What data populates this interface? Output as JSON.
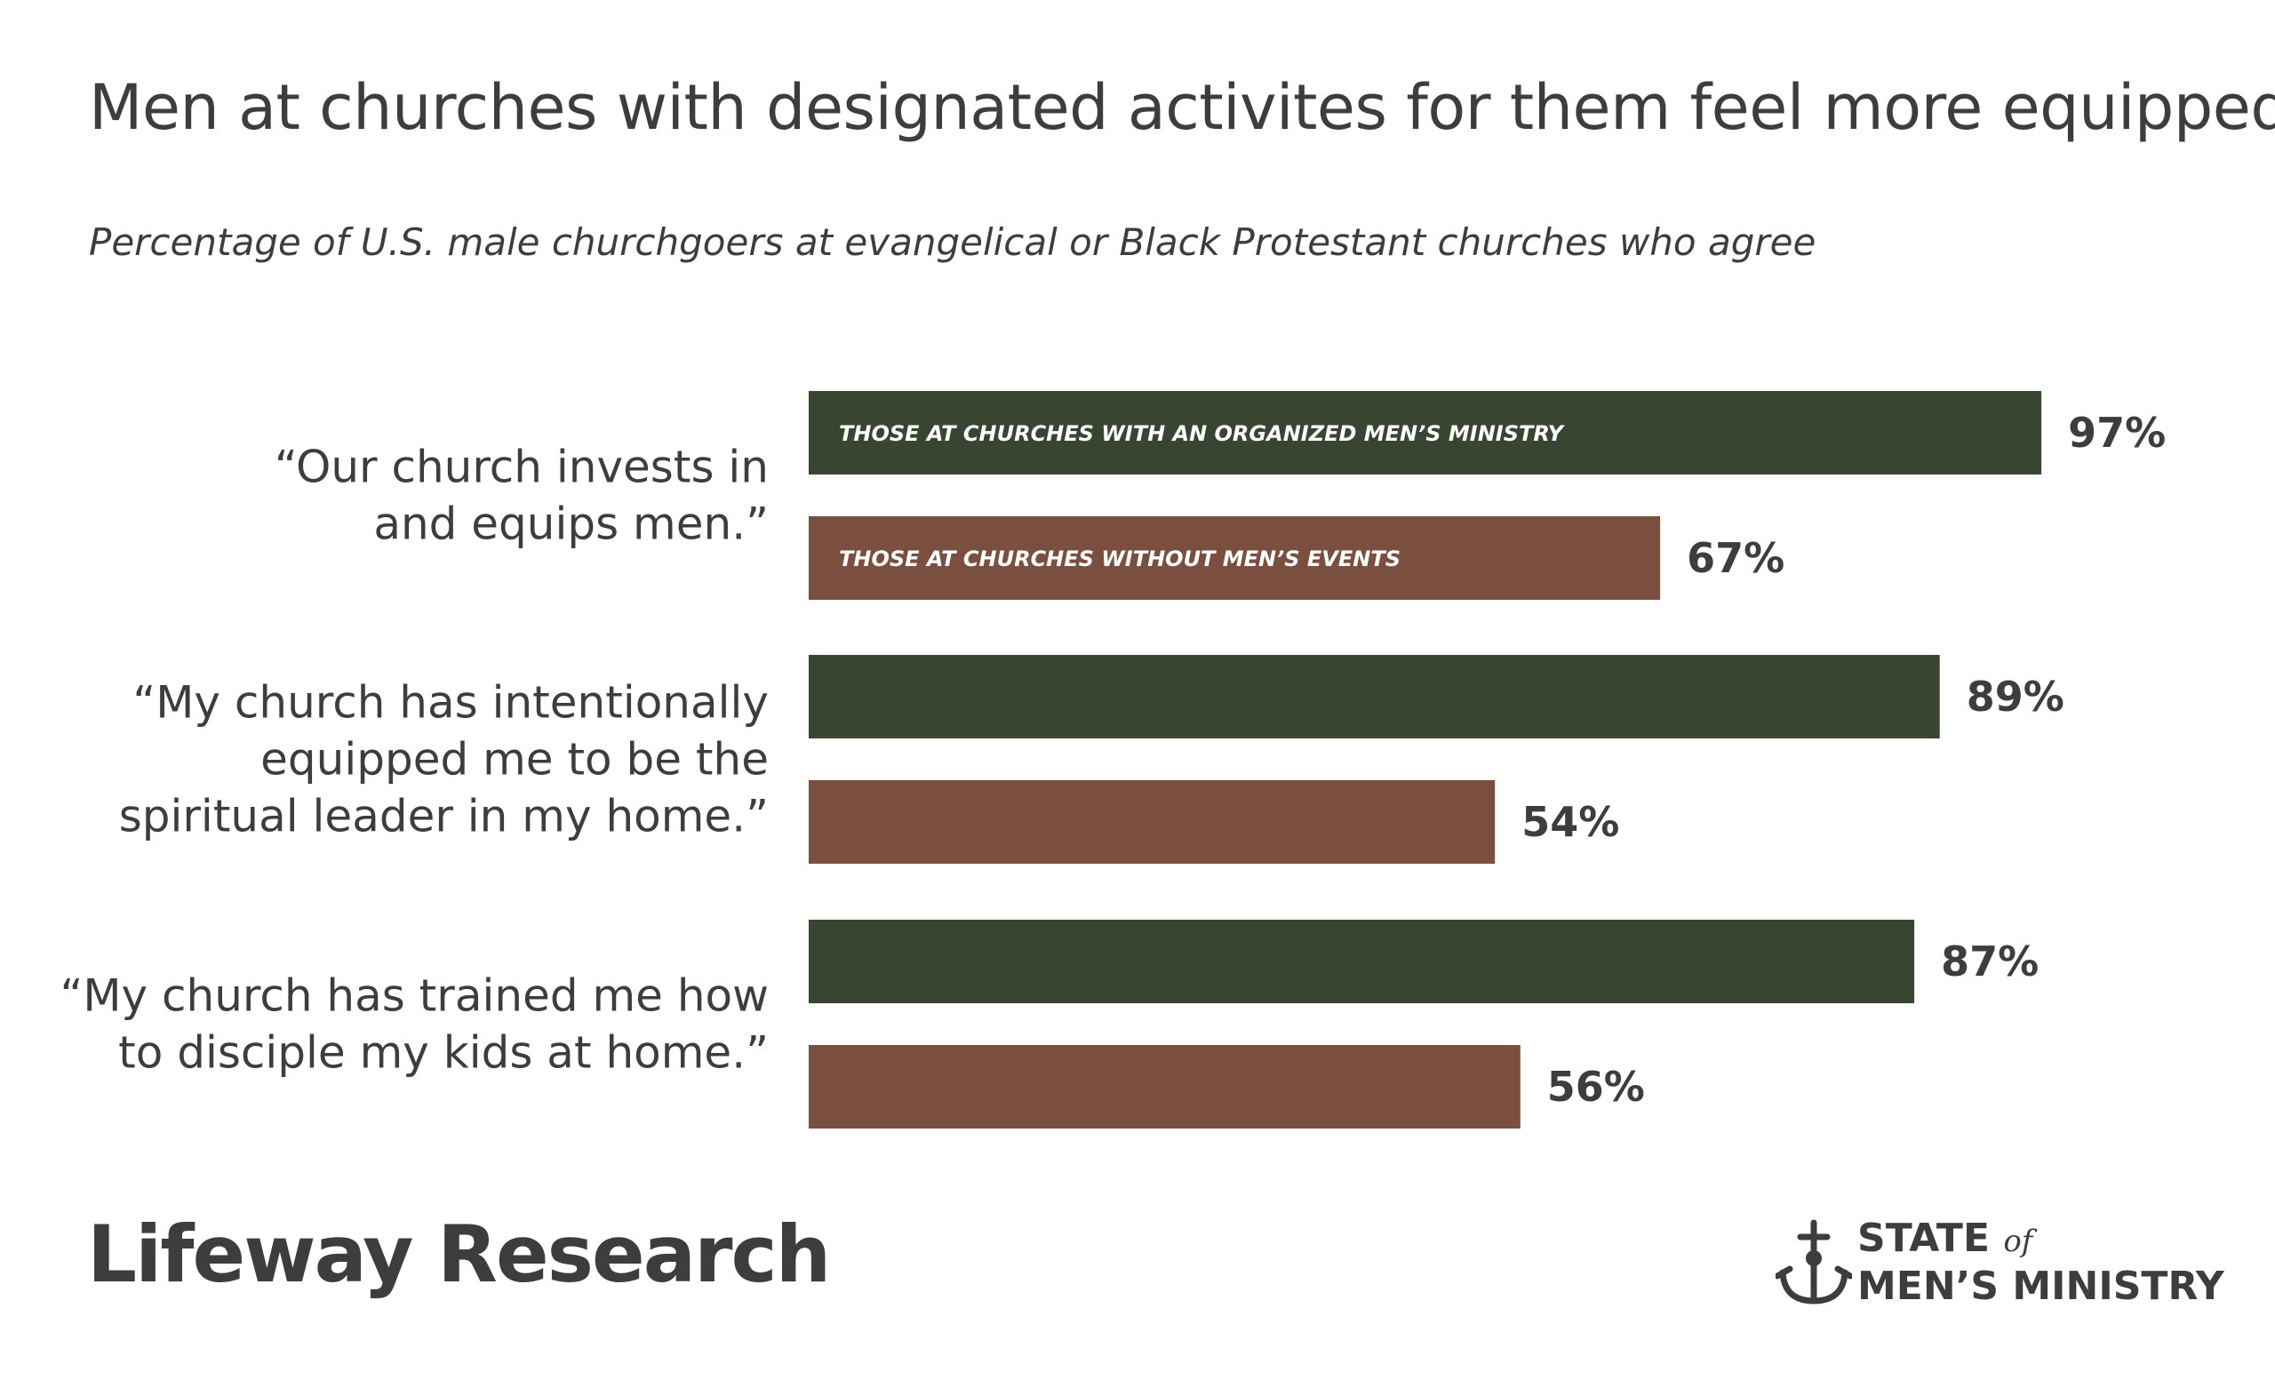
{
  "title": "Men at churches with designated activites for them feel more equipped",
  "subtitle": "Percentage of U.S. male churchgoers at evangelical or Black Protestant churches who agree",
  "colors": {
    "series_with_ministry": "#384530",
    "series_without_events": "#7a4f3f",
    "text": "#3d3d3d"
  },
  "chart_data": {
    "type": "bar",
    "orientation": "horizontal",
    "categories": [
      [
        "“Our church invests in",
        "and equips men.”"
      ],
      [
        "“My church has intentionally",
        "equipped me to be the",
        "spiritual leader in my home.”"
      ],
      [
        "“My church has trained me how",
        "to disciple my kids at home.”"
      ]
    ],
    "series": [
      {
        "name": "THOSE AT CHURCHES WITH AN ORGANIZED MEN’S MINISTRY",
        "values": [
          97,
          89,
          87
        ],
        "color": "#384530"
      },
      {
        "name": "THOSE AT CHURCHES WITHOUT MEN’S EVENTS",
        "values": [
          67,
          54,
          56
        ],
        "color": "#7a4f3f"
      }
    ],
    "value_suffix": "%",
    "xlim": [
      0,
      100
    ],
    "grid": false,
    "legend_placement": "inside first bar of each series"
  },
  "logos": {
    "left": "Lifeway Research",
    "right_line1": "STATE",
    "right_of": "of",
    "right_line2": "MEN’S MINISTRY"
  }
}
